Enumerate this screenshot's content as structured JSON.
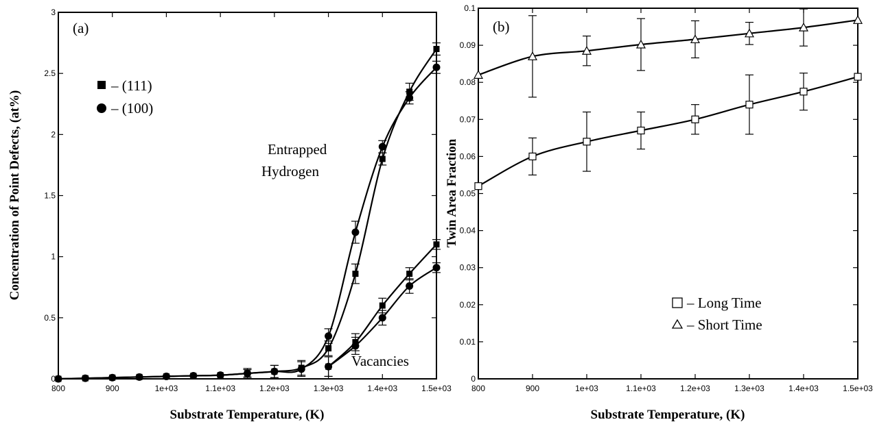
{
  "chart_data": [
    {
      "type": "line",
      "panel_label": "(a)",
      "xlabel": "Substrate Temperature, (K)",
      "ylabel": "Concentration of Point Defects, (at%)",
      "xlim": [
        800,
        1500
      ],
      "ylim": [
        0,
        3
      ],
      "xticks": [
        {
          "v": 800,
          "label": "800"
        },
        {
          "v": 900,
          "label": "900"
        },
        {
          "v": 1000,
          "label": "1e+03"
        },
        {
          "v": 1100,
          "label": "1.1e+03"
        },
        {
          "v": 1200,
          "label": "1.2e+03"
        },
        {
          "v": 1300,
          "label": "1.3e+03"
        },
        {
          "v": 1400,
          "label": "1.4e+03"
        },
        {
          "v": 1500,
          "label": "1.5e+03"
        }
      ],
      "yticks": [
        {
          "v": 0,
          "label": "0"
        },
        {
          "v": 0.5,
          "label": "0.5"
        },
        {
          "v": 1,
          "label": "1"
        },
        {
          "v": 1.5,
          "label": "1.5"
        },
        {
          "v": 2,
          "label": "2"
        },
        {
          "v": 2.5,
          "label": "2.5"
        },
        {
          "v": 3,
          "label": "3"
        }
      ],
      "legend_position": "top-left",
      "legend": [
        {
          "marker": "square",
          "label": "– (111)"
        },
        {
          "marker": "circle",
          "label": "– (100)"
        }
      ],
      "annotations": [
        "Entrapped",
        "Hydrogen",
        "Vacancies"
      ],
      "series": [
        {
          "name": "(111)",
          "group": "Entrapped Hydrogen",
          "marker": "square",
          "x": [
            800,
            850,
            900,
            950,
            1000,
            1050,
            1100,
            1150,
            1200,
            1250,
            1300,
            1350,
            1400,
            1450,
            1500
          ],
          "y": [
            0.0,
            0.005,
            0.01,
            0.015,
            0.02,
            0.025,
            0.03,
            0.045,
            0.06,
            0.09,
            0.25,
            0.86,
            1.8,
            2.35,
            2.7
          ],
          "err": [
            0,
            0,
            0,
            0,
            0,
            0,
            0,
            0.03,
            0.05,
            0.06,
            0.06,
            0.08,
            0.05,
            0.07,
            0.05
          ]
        },
        {
          "name": "(100)",
          "group": "Entrapped Hydrogen",
          "marker": "circle",
          "x": [
            800,
            850,
            900,
            950,
            1000,
            1050,
            1100,
            1150,
            1200,
            1250,
            1300,
            1350,
            1400,
            1450,
            1500
          ],
          "y": [
            0.0,
            0.005,
            0.01,
            0.015,
            0.02,
            0.025,
            0.03,
            0.045,
            0.06,
            0.08,
            0.35,
            1.2,
            1.9,
            2.3,
            2.55
          ],
          "err": [
            0,
            0,
            0,
            0,
            0,
            0,
            0,
            0.04,
            0.05,
            0.06,
            0.06,
            0.09,
            0.05,
            0.05,
            0.05
          ]
        },
        {
          "name": "(111)",
          "group": "Vacancies",
          "marker": "square",
          "x": [
            1300,
            1350,
            1400,
            1450,
            1500
          ],
          "y": [
            0.1,
            0.3,
            0.6,
            0.86,
            1.1
          ],
          "err": [
            0.08,
            0.07,
            0.06,
            0.05,
            0.04
          ]
        },
        {
          "name": "(100)",
          "group": "Vacancies",
          "marker": "circle",
          "x": [
            1300,
            1350,
            1400,
            1450,
            1500
          ],
          "y": [
            0.1,
            0.27,
            0.5,
            0.76,
            0.91
          ],
          "err": [
            0.08,
            0.07,
            0.06,
            0.06,
            0.04
          ]
        }
      ]
    },
    {
      "type": "line",
      "panel_label": "(b)",
      "xlabel": "Substrate Temperature, (K)",
      "ylabel": "Twin Area Fraction",
      "xlim": [
        800,
        1500
      ],
      "ylim": [
        0,
        0.1
      ],
      "xticks": [
        {
          "v": 800,
          "label": "800"
        },
        {
          "v": 900,
          "label": "900"
        },
        {
          "v": 1000,
          "label": "1e+03"
        },
        {
          "v": 1100,
          "label": "1.1e+03"
        },
        {
          "v": 1200,
          "label": "1.2e+03"
        },
        {
          "v": 1300,
          "label": "1.3e+03"
        },
        {
          "v": 1400,
          "label": "1.4e+03"
        },
        {
          "v": 1500,
          "label": "1.5e+03"
        }
      ],
      "yticks": [
        {
          "v": 0,
          "label": "0"
        },
        {
          "v": 0.01,
          "label": "0.01"
        },
        {
          "v": 0.02,
          "label": "0.02"
        },
        {
          "v": 0.03,
          "label": "0.03"
        },
        {
          "v": 0.04,
          "label": "0.04"
        },
        {
          "v": 0.05,
          "label": "0.05"
        },
        {
          "v": 0.06,
          "label": "0.06"
        },
        {
          "v": 0.07,
          "label": "0.07"
        },
        {
          "v": 0.08,
          "label": "0.08"
        },
        {
          "v": 0.09,
          "label": "0.09"
        },
        {
          "v": 0.1,
          "label": "0.1"
        }
      ],
      "legend_position": "bottom-right",
      "legend": [
        {
          "marker": "open-square",
          "label": "– Long Time"
        },
        {
          "marker": "open-triangle",
          "label": "– Short Time"
        }
      ],
      "series": [
        {
          "name": "Long Time",
          "marker": "open-square",
          "x": [
            800,
            900,
            1000,
            1100,
            1200,
            1300,
            1400,
            1500
          ],
          "y": [
            0.052,
            0.06,
            0.064,
            0.067,
            0.07,
            0.074,
            0.0775,
            0.0815
          ],
          "err": [
            0,
            0.005,
            0.008,
            0.005,
            0.004,
            0.008,
            0.005,
            0
          ]
        },
        {
          "name": "Short Time",
          "marker": "open-triangle",
          "x": [
            800,
            900,
            1000,
            1100,
            1200,
            1300,
            1400,
            1500
          ],
          "y": [
            0.082,
            0.087,
            0.0885,
            0.0902,
            0.0916,
            0.0932,
            0.0948,
            0.0968
          ],
          "err": [
            0,
            0.011,
            0.004,
            0.007,
            0.005,
            0.003,
            0.005,
            0
          ]
        }
      ]
    }
  ]
}
